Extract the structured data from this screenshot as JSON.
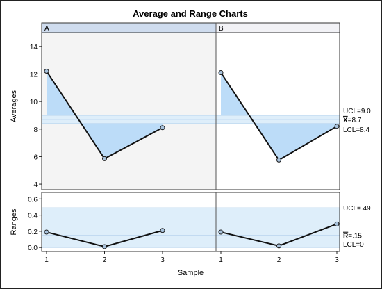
{
  "chart_data": {
    "type": "line",
    "title": "Average and Range Charts",
    "xlabel": "Sample",
    "panels": [
      {
        "name": "A",
        "x": [
          1,
          2,
          3
        ],
        "averages": [
          12.2,
          5.85,
          8.1
        ],
        "ranges": [
          0.19,
          0.01,
          0.21
        ]
      },
      {
        "name": "B",
        "x": [
          1,
          2,
          3
        ],
        "averages": [
          12.1,
          5.75,
          8.2
        ],
        "ranges": [
          0.19,
          0.02,
          0.29
        ]
      }
    ],
    "averages_chart": {
      "ylabel": "Averages",
      "ylim": [
        3.6,
        15.0
      ],
      "yticks": [
        4,
        6,
        8,
        10,
        12,
        14
      ],
      "ucl": 9.0,
      "center": 8.7,
      "lcl": 8.4,
      "ucl_label": "UCL=9.0",
      "center_label_rest": "=8.7",
      "lcl_label": "LCL=8.4"
    },
    "ranges_chart": {
      "ylabel": "Ranges",
      "ylim": [
        -0.05,
        0.68
      ],
      "yticks": [
        0.0,
        0.2,
        0.4,
        0.6
      ],
      "ytick_labels": [
        "0.0",
        "0.2",
        "0.4",
        "0.6"
      ],
      "ucl": 0.49,
      "center": 0.15,
      "lcl": 0,
      "ucl_label": "UCL=.49",
      "center_label_rest": "=.15",
      "lcl_label": "LCL=0"
    },
    "xticks": [
      1,
      2,
      3
    ],
    "colors": {
      "panel_a_bg": "#f4f4f4",
      "panel_b_bg": "#ffffff",
      "header_a_bg": "#cfdcee",
      "header_b_bg": "#f2f2f6",
      "limit_band": "#deeefa",
      "limit_line": "#b8d4ee",
      "fill_out": "#bcdcf8",
      "series_line": "#111111",
      "marker_fill": "#a8c2dc"
    }
  }
}
